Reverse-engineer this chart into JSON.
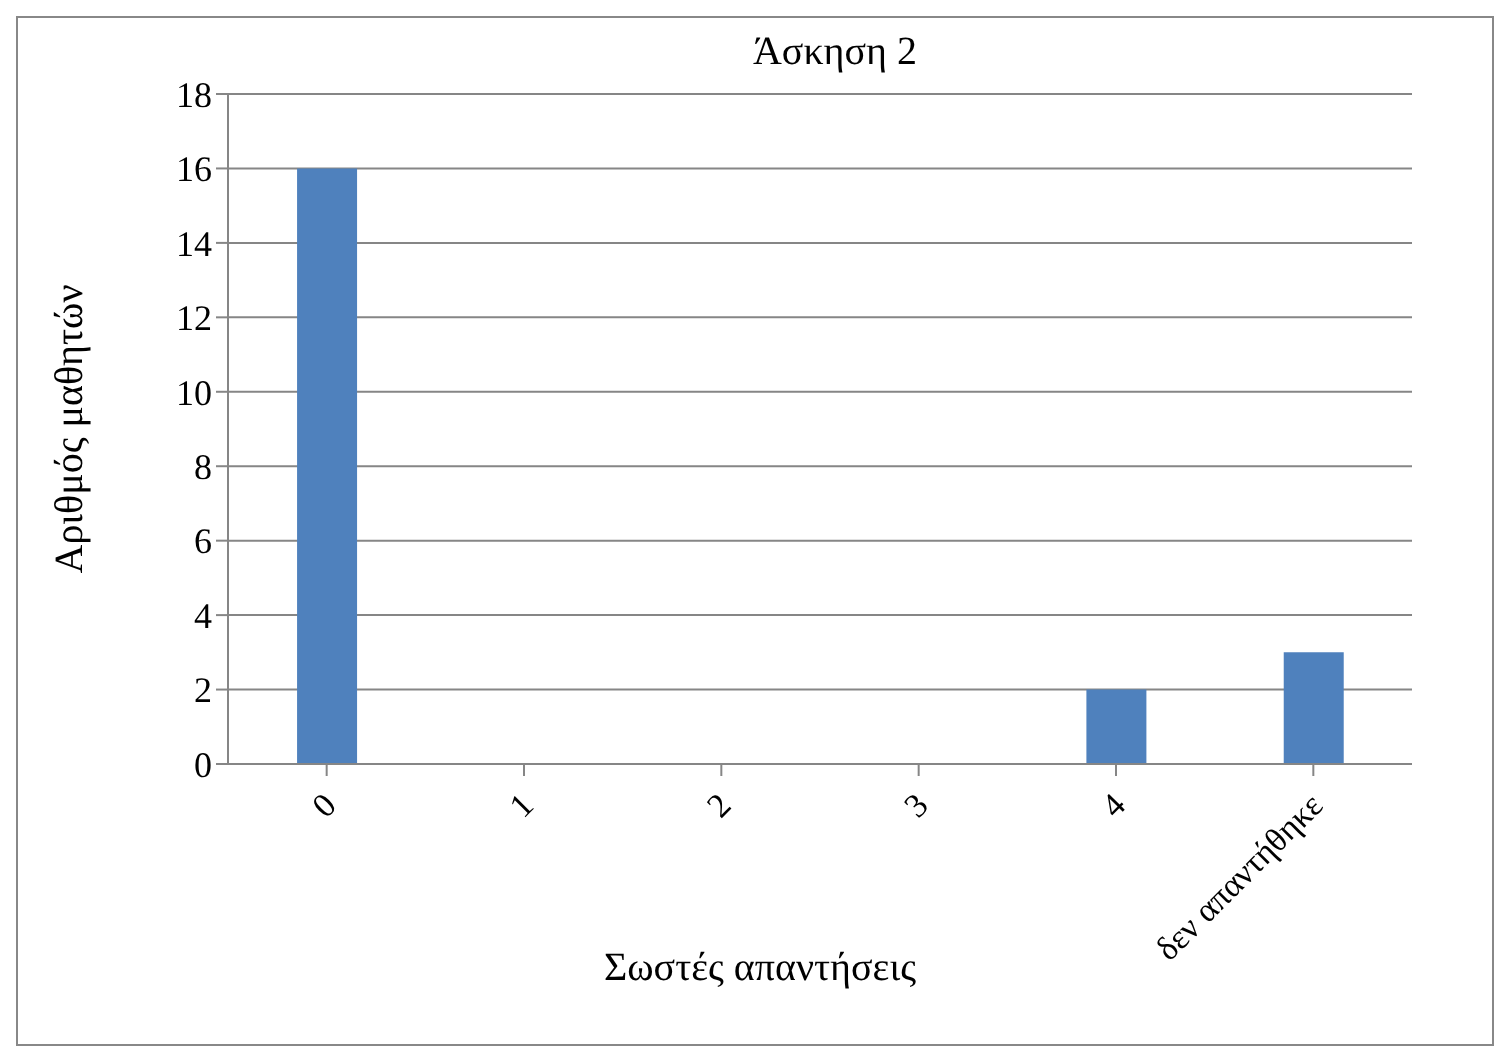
{
  "chart_data": {
    "type": "bar",
    "title": "Άσκηση 2",
    "xlabel": "Σωστές απαντήσεις",
    "ylabel": "Αριθμός μαθητών",
    "categories": [
      "0",
      "1",
      "2",
      "3",
      "4",
      "δεν απαντήθηκε"
    ],
    "values": [
      16,
      0,
      0,
      0,
      2,
      3
    ],
    "color": "#4f81bd",
    "ylim": [
      0,
      18
    ],
    "yticks": [
      0,
      2,
      4,
      6,
      8,
      10,
      12,
      14,
      16,
      18
    ],
    "grid": "y"
  }
}
